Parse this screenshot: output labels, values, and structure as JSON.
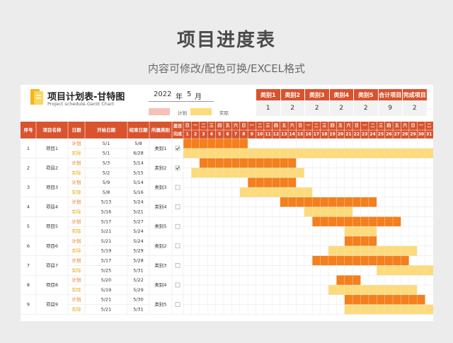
{
  "hero": {
    "title": "项目进度表",
    "subtitle": "内容可修改/配色可换/EXCEL格式"
  },
  "sheet": {
    "title": "项目计划表-甘特图",
    "subtitle": "Project schedule-Gantt Chart",
    "year": "2022",
    "year_unit": "年",
    "month": "5",
    "month_unit": "月",
    "legend": {
      "plan_label": "计划",
      "actual_label": "实际"
    }
  },
  "categories": {
    "headers": [
      "类别1",
      "类别2",
      "类别3",
      "类别4",
      "类别5",
      "合计项目",
      "完成项目"
    ],
    "values": [
      "1",
      "2",
      "2",
      "2",
      "2",
      "9",
      "2"
    ]
  },
  "table": {
    "headers": {
      "seq": "序号",
      "name": "项目名称",
      "date": "日期",
      "start": "开始日期",
      "end": "结束日期",
      "category": "所属类别",
      "done": "是否完成"
    },
    "weekdays": [
      "日",
      "一",
      "二",
      "三",
      "四",
      "五",
      "六",
      "日",
      "一",
      "二",
      "三",
      "四",
      "五",
      "六",
      "日",
      "一",
      "二",
      "三",
      "四",
      "五",
      "六",
      "日",
      "一",
      "二",
      "三",
      "四",
      "五",
      "六",
      "日",
      "一",
      "二"
    ],
    "days": [
      "1",
      "2",
      "3",
      "4",
      "5",
      "6",
      "7",
      "8",
      "9",
      "10",
      "11",
      "12",
      "13",
      "14",
      "15",
      "16",
      "17",
      "18",
      "19",
      "20",
      "21",
      "22",
      "23",
      "24",
      "25",
      "26",
      "27",
      "28",
      "29",
      "30",
      "31"
    ],
    "plan_label": "计划",
    "actual_label": "实际",
    "projects": [
      {
        "seq": "1",
        "name": "项目1",
        "category": "类别1",
        "done": true,
        "plan": {
          "start": "5/1",
          "end": "5/8"
        },
        "actual": {
          "start": "5/1",
          "end": "6/28"
        }
      },
      {
        "seq": "2",
        "name": "项目2",
        "category": "类别2",
        "done": true,
        "plan": {
          "start": "5/3",
          "end": "5/14"
        },
        "actual": {
          "start": "5/2",
          "end": "5/15"
        }
      },
      {
        "seq": "3",
        "name": "项目3",
        "category": "类别3",
        "done": false,
        "plan": {
          "start": "5/9",
          "end": "5/14"
        },
        "actual": {
          "start": "5/8",
          "end": "5/16"
        }
      },
      {
        "seq": "4",
        "name": "项目4",
        "category": "类别4",
        "done": false,
        "plan": {
          "start": "5/13",
          "end": "5/24"
        },
        "actual": {
          "start": "5/16",
          "end": "5/21"
        }
      },
      {
        "seq": "5",
        "name": "项目5",
        "category": "类别5",
        "done": false,
        "plan": {
          "start": "5/17",
          "end": "5/27"
        },
        "actual": {
          "start": "5/21",
          "end": "5/24"
        }
      },
      {
        "seq": "6",
        "name": "项目6",
        "category": "类别2",
        "done": false,
        "plan": {
          "start": "5/21",
          "end": "5/24"
        },
        "actual": {
          "start": "5/19",
          "end": "5/29"
        }
      },
      {
        "seq": "7",
        "name": "项目7",
        "category": "类别3",
        "done": false,
        "plan": {
          "start": "5/17",
          "end": "5/28"
        },
        "actual": {
          "start": "5/25",
          "end": "5/31"
        }
      },
      {
        "seq": "8",
        "name": "项目8",
        "category": "类别4",
        "done": false,
        "plan": {
          "start": "5/20",
          "end": "5/22"
        },
        "actual": {
          "start": "5/19",
          "end": "5/29"
        }
      },
      {
        "seq": "9",
        "name": "项目9",
        "category": "类别5",
        "done": false,
        "plan": {
          "start": "5/21",
          "end": "5/30"
        },
        "actual": {
          "start": "5/21",
          "end": "5/31"
        }
      }
    ]
  },
  "bars": [
    {
      "plan": [
        1,
        8
      ],
      "actual": [
        1,
        31
      ]
    },
    {
      "plan": [
        3,
        14
      ],
      "actual": [
        2,
        15
      ]
    },
    {
      "plan": [
        9,
        14
      ],
      "actual": [
        8,
        16
      ]
    },
    {
      "plan": [
        13,
        24
      ],
      "actual": [
        16,
        21
      ]
    },
    {
      "plan": [
        17,
        27
      ],
      "actual": [
        21,
        24
      ]
    },
    {
      "plan": [
        21,
        24
      ],
      "actual": [
        19,
        29
      ]
    },
    {
      "plan": [
        17,
        28
      ],
      "actual": [
        25,
        31
      ]
    },
    {
      "plan": [
        20,
        22
      ],
      "actual": [
        19,
        29
      ]
    },
    {
      "plan": [
        21,
        30
      ],
      "actual": [
        21,
        31
      ]
    }
  ],
  "colors": {
    "header_orange": "#d8532e",
    "plan_bar": "#f47f1c",
    "actual_bar": "#fddb7a",
    "legend_plan": "#f4c2b6",
    "legend_actual": "#fddb7a",
    "plan_text": "#e8741e",
    "actual_text": "#e2a400",
    "bg": "#ececec"
  }
}
